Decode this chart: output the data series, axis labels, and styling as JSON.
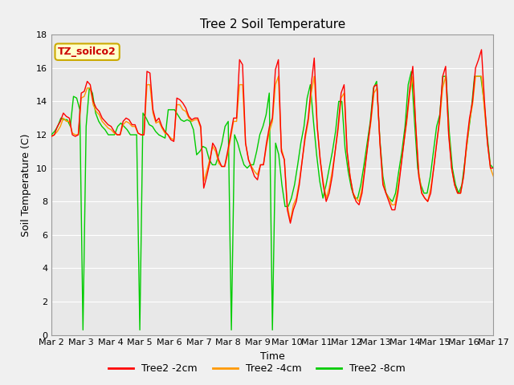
{
  "title": "Tree 2 Soil Temperature",
  "xlabel": "Time",
  "ylabel": "Soil Temperature (C)",
  "ylim": [
    0,
    18
  ],
  "yticks": [
    0,
    2,
    4,
    6,
    8,
    10,
    12,
    14,
    16,
    18
  ],
  "background_color": "#f0f0f0",
  "plot_bg_color": "#e8e8e8",
  "legend_label": "TZ_soilco2",
  "legend_bg": "#ffffcc",
  "legend_border": "#ccaa00",
  "line_colors": {
    "2cm": "#ff0000",
    "4cm": "#ff9900",
    "8cm": "#00cc00"
  },
  "x_labels": [
    "Mar 2",
    "Mar 3",
    "Mar 4",
    "Mar 5",
    "Mar 6",
    "Mar 7",
    "Mar 8",
    "Mar 9",
    "Mar 10",
    "Mar 11",
    "Mar 12",
    "Mar 13",
    "Mar 14",
    "Mar 15",
    "Mar 16",
    "Mar 17"
  ],
  "series_2cm": [
    11.9,
    12.0,
    12.5,
    12.8,
    13.3,
    13.1,
    13.0,
    12.0,
    11.9,
    12.0,
    14.5,
    14.6,
    15.2,
    15.0,
    14.0,
    13.6,
    13.4,
    13.0,
    12.8,
    12.6,
    12.5,
    12.2,
    12.0,
    12.0,
    12.8,
    13.0,
    12.9,
    12.6,
    12.6,
    12.1,
    12.0,
    12.0,
    15.8,
    15.7,
    13.5,
    12.8,
    13.0,
    12.5,
    12.2,
    12.0,
    11.7,
    11.6,
    14.2,
    14.1,
    13.9,
    13.6,
    13.1,
    12.9,
    13.0,
    13.0,
    12.5,
    8.8,
    9.5,
    10.3,
    11.5,
    11.2,
    10.5,
    10.1,
    10.1,
    11.0,
    12.0,
    13.0,
    13.0,
    16.5,
    16.2,
    11.5,
    10.5,
    10.0,
    9.5,
    9.3,
    10.2,
    10.2,
    11.5,
    12.5,
    13.0,
    15.9,
    16.5,
    11.0,
    10.5,
    7.5,
    6.7,
    7.5,
    8.0,
    9.0,
    10.5,
    12.0,
    13.0,
    15.0,
    16.6,
    12.5,
    10.5,
    9.0,
    8.0,
    8.5,
    9.5,
    11.0,
    12.5,
    14.5,
    15.0,
    11.0,
    9.5,
    8.5,
    8.0,
    7.8,
    8.5,
    10.0,
    11.5,
    13.0,
    14.9,
    15.0,
    11.5,
    9.0,
    8.5,
    8.0,
    7.5,
    7.5,
    8.5,
    10.0,
    11.5,
    13.0,
    14.8,
    16.1,
    12.5,
    9.5,
    8.5,
    8.2,
    8.0,
    8.5,
    10.0,
    11.5,
    13.0,
    15.5,
    16.1,
    12.0,
    10.0,
    9.0,
    8.5,
    8.5,
    9.5,
    11.5,
    13.0,
    14.0,
    16.0,
    16.5,
    17.1,
    14.0,
    11.5,
    10.0,
    10.0
  ],
  "series_4cm": [
    11.9,
    12.0,
    12.2,
    12.5,
    13.0,
    12.8,
    12.8,
    12.1,
    12.0,
    12.0,
    14.2,
    14.3,
    14.8,
    14.8,
    13.8,
    13.4,
    13.2,
    12.8,
    12.6,
    12.4,
    12.3,
    12.1,
    12.0,
    12.0,
    12.6,
    12.8,
    12.7,
    12.5,
    12.5,
    12.1,
    12.0,
    12.0,
    15.0,
    15.0,
    13.3,
    12.7,
    12.8,
    12.4,
    12.1,
    12.0,
    11.8,
    11.7,
    13.8,
    13.8,
    13.5,
    13.4,
    13.0,
    12.8,
    12.9,
    12.9,
    12.4,
    9.2,
    9.8,
    10.5,
    11.3,
    11.0,
    10.3,
    10.1,
    10.1,
    10.8,
    11.8,
    12.8,
    12.8,
    15.0,
    15.0,
    11.5,
    10.5,
    10.1,
    9.8,
    9.6,
    10.2,
    10.2,
    11.3,
    12.2,
    12.8,
    15.0,
    15.5,
    11.2,
    10.5,
    7.8,
    6.8,
    7.8,
    8.2,
    9.2,
    10.5,
    11.8,
    12.8,
    14.5,
    15.5,
    12.5,
    10.5,
    9.2,
    8.2,
    8.8,
    9.8,
    11.0,
    12.3,
    14.2,
    14.5,
    11.0,
    9.5,
    8.5,
    8.2,
    8.0,
    8.8,
    10.1,
    11.5,
    12.8,
    14.5,
    14.8,
    11.5,
    9.2,
    8.5,
    8.2,
    7.8,
    7.8,
    8.8,
    10.1,
    11.5,
    12.8,
    14.5,
    15.5,
    12.5,
    9.8,
    8.5,
    8.2,
    8.0,
    8.8,
    10.0,
    11.5,
    12.8,
    14.8,
    15.5,
    12.2,
    10.0,
    9.0,
    8.5,
    8.5,
    9.5,
    11.2,
    12.8,
    13.8,
    15.5,
    15.5,
    15.5,
    13.5,
    11.5,
    10.0,
    9.5
  ],
  "series_8cm": [
    12.0,
    12.2,
    12.5,
    13.0,
    12.9,
    12.9,
    12.5,
    14.3,
    14.2,
    13.5,
    0.3,
    12.5,
    14.8,
    14.5,
    13.3,
    12.8,
    12.5,
    12.3,
    12.0,
    12.0,
    12.0,
    12.5,
    12.7,
    12.5,
    12.3,
    12.0,
    12.0,
    12.0,
    0.3,
    13.3,
    13.0,
    12.6,
    12.5,
    12.2,
    12.0,
    11.9,
    11.8,
    13.5,
    13.5,
    13.5,
    13.2,
    12.9,
    12.8,
    12.9,
    12.8,
    12.3,
    10.8,
    11.0,
    11.3,
    11.2,
    10.5,
    10.2,
    10.2,
    10.8,
    11.5,
    12.5,
    12.8,
    0.3,
    12.0,
    11.5,
    10.8,
    10.2,
    10.0,
    10.2,
    10.2,
    11.0,
    12.0,
    12.5,
    13.2,
    14.5,
    0.3,
    11.5,
    10.8,
    9.0,
    7.7,
    7.7,
    8.2,
    9.0,
    10.2,
    11.5,
    12.5,
    14.2,
    15.0,
    12.8,
    10.8,
    9.2,
    8.2,
    9.0,
    10.0,
    11.0,
    12.2,
    14.0,
    14.0,
    11.2,
    9.8,
    8.8,
    8.2,
    8.2,
    9.0,
    10.2,
    11.5,
    12.8,
    14.8,
    15.2,
    11.8,
    9.5,
    8.5,
    8.2,
    8.0,
    8.5,
    9.8,
    11.0,
    12.5,
    15.0,
    15.8,
    12.8,
    10.0,
    9.0,
    8.5,
    8.5,
    9.5,
    11.0,
    12.5,
    13.2,
    15.5,
    15.5,
    12.2,
    10.0,
    9.0,
    8.5,
    9.0,
    10.5,
    12.0,
    13.5,
    15.5,
    15.5,
    15.5,
    14.0,
    12.0,
    10.2,
    10.0
  ]
}
